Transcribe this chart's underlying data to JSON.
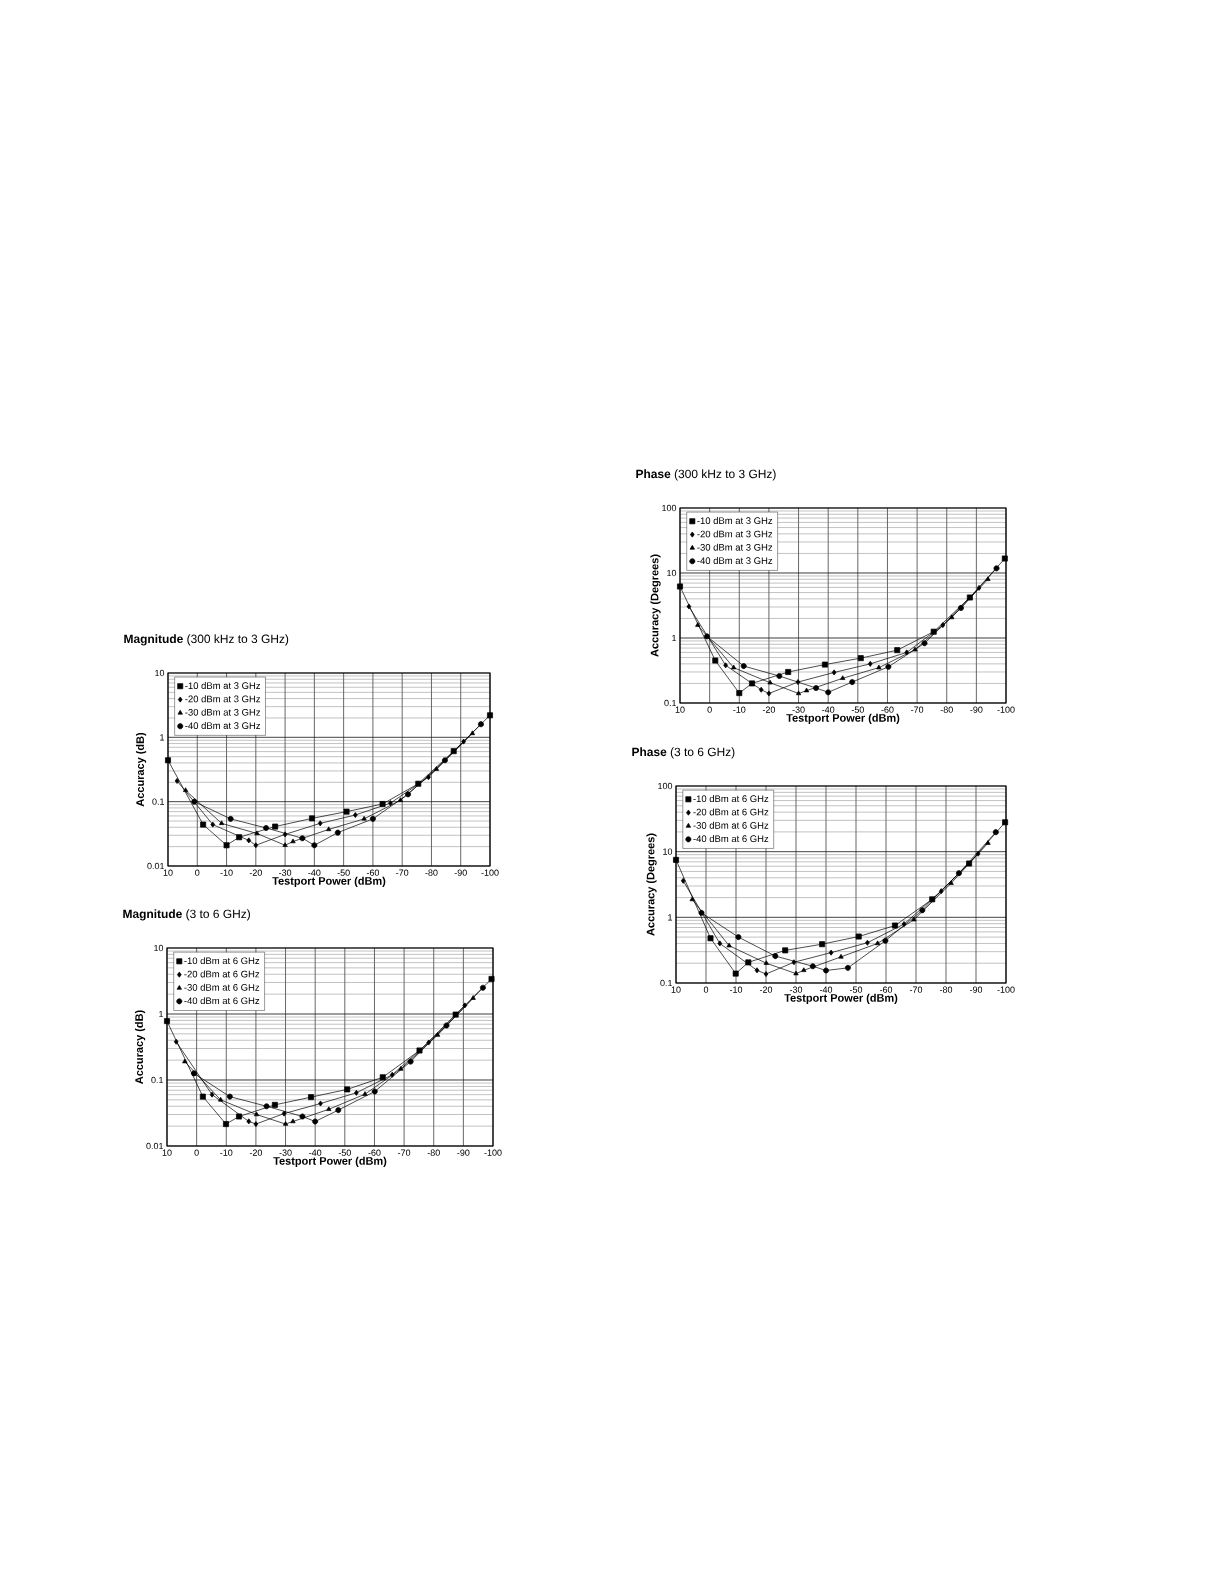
{
  "chart_data": [
    {
      "type": "line",
      "title": "**Magnitude**   (300 kHz to 3 GHz)",
      "xlabel": "Testport Power (dBm)",
      "ylabel": "Accuracy (dB)",
      "log": "y",
      "grid": true,
      "legend": "top left",
      "xlim": [
        10,
        -100
      ],
      "xticks": [
        10,
        0,
        -10,
        -20,
        -30,
        -40,
        -50,
        -60,
        -70,
        -80,
        -90,
        -100
      ],
      "ylim": [
        0.01,
        10
      ],
      "yticks": [
        0.01,
        0.1,
        1,
        10
      ],
      "series": [
        {
          "name": "-10 dBm at 3 GHz",
          "color": "#000000",
          "marker": "square",
          "x": [
            10,
            -2,
            -10,
            -14.3,
            -26.6,
            -39.2,
            -51,
            -63.3,
            -75.5,
            -87.6,
            -100
          ],
          "values": [
            0.44,
            0.044,
            0.021,
            0.028,
            0.041,
            0.055,
            0.07,
            0.092,
            0.19,
            0.61,
            2.2
          ]
        },
        {
          "name": "-20 dBm at 3 GHz",
          "color": "#000000",
          "marker": "diamond",
          "x": [
            6.9,
            -5.3,
            -17.6,
            -20,
            -30,
            -42,
            -54,
            -66,
            -79,
            -91
          ],
          "values": [
            0.21,
            0.044,
            0.025,
            0.021,
            0.031,
            0.046,
            0.062,
            0.095,
            0.24,
            0.86
          ]
        },
        {
          "name": "-30 dBm at 3 GHz",
          "color": "#000000",
          "marker": "triangle",
          "x": [
            4,
            -8.3,
            -20.4,
            -30,
            -32.7,
            -44.9,
            -57,
            -69.4,
            -81.7,
            -94
          ],
          "values": [
            0.15,
            0.046,
            0.032,
            0.021,
            0.024,
            0.037,
            0.054,
            0.105,
            0.32,
            1.15
          ]
        },
        {
          "name": "-40 dBm at 3 GHz",
          "color": "#000000",
          "marker": "circle",
          "x": [
            1,
            -11.4,
            -23.5,
            -35.9,
            -40,
            -48,
            -60,
            -72,
            -84.6,
            -96.9
          ],
          "values": [
            0.1,
            0.054,
            0.039,
            0.027,
            0.021,
            0.033,
            0.054,
            0.13,
            0.44,
            1.6
          ]
        }
      ]
    },
    {
      "type": "line",
      "title": "**Magnitude**   (3 to 6 GHz)",
      "xlabel": "Testport Power (dBm)",
      "ylabel": "Accuracy (dB)",
      "log": "y",
      "grid": true,
      "legend": "top left",
      "xlim": [
        10,
        -100
      ],
      "xticks": [
        10,
        0,
        -10,
        -20,
        -30,
        -40,
        -50,
        -60,
        -70,
        -80,
        -90,
        -100
      ],
      "ylim": [
        0.01,
        10
      ],
      "yticks": [
        0.01,
        0.1,
        1,
        10
      ],
      "series": [
        {
          "name": "-10 dBm at 6 GHz",
          "color": "#000000",
          "marker": "square",
          "x": [
            10,
            -2.1,
            -9.9,
            -14.3,
            -26.4,
            -38.6,
            -50.8,
            -62.8,
            -75.2,
            -87.4,
            -99.5
          ],
          "values": [
            0.78,
            0.056,
            0.0215,
            0.028,
            0.042,
            0.055,
            0.072,
            0.11,
            0.28,
            0.98,
            3.4
          ]
        },
        {
          "name": "-20 dBm at 6 GHz",
          "color": "#000000",
          "marker": "diamond",
          "x": [
            6.9,
            -5.2,
            -17.6,
            -20,
            -29.5,
            -41.8,
            -53.9,
            -66,
            -78.3,
            -90.5
          ],
          "values": [
            0.38,
            0.06,
            0.0236,
            0.0215,
            0.031,
            0.044,
            0.064,
            0.12,
            0.37,
            1.35
          ]
        },
        {
          "name": "-30 dBm at 6 GHz",
          "color": "#000000",
          "marker": "triangle",
          "x": [
            4,
            -8.1,
            -20.2,
            -30,
            -32.5,
            -44.6,
            -56.8,
            -68.9,
            -81.3,
            -93.3
          ],
          "values": [
            0.19,
            0.05,
            0.03,
            0.0215,
            0.0235,
            0.036,
            0.061,
            0.147,
            0.48,
            1.74
          ]
        },
        {
          "name": "-40 dBm at 6 GHz",
          "color": "#000000",
          "marker": "circle",
          "x": [
            0.9,
            -11.2,
            -23.6,
            -35.7,
            -40,
            -47.8,
            -60.1,
            -72.2,
            -84.3,
            -96.6
          ],
          "values": [
            0.126,
            0.056,
            0.04,
            0.028,
            0.0235,
            0.035,
            0.067,
            0.19,
            0.67,
            2.5
          ]
        }
      ]
    },
    {
      "type": "line",
      "title": "**Phase**  (300 kHz to 3 GHz)",
      "xlabel": "Testport Power (dBm)",
      "ylabel": "Accuracy (Degrees)",
      "log": "y",
      "grid": true,
      "legend": "top left",
      "xlim": [
        10,
        -100
      ],
      "xticks": [
        10,
        0,
        -10,
        -20,
        -30,
        -40,
        -50,
        -60,
        -70,
        -80,
        -90,
        -100
      ],
      "ylim": [
        0.1,
        100
      ],
      "yticks": [
        0.1,
        1,
        10,
        100
      ],
      "series": [
        {
          "name": "-10 dBm at 3 GHz",
          "color": "#000000",
          "marker": "square",
          "x": [
            10,
            -1.9,
            -10,
            -14.3,
            -26.5,
            -38.9,
            -51,
            -63.3,
            -75.6,
            -87.8,
            -99.6
          ],
          "values": [
            6.2,
            0.45,
            0.142,
            0.2,
            0.3,
            0.39,
            0.49,
            0.65,
            1.25,
            4.2,
            16.7
          ]
        },
        {
          "name": "-20 dBm at 3 GHz",
          "color": "#000000",
          "marker": "diamond",
          "x": [
            7,
            -5.4,
            -17.4,
            -20,
            -29.8,
            -42,
            -54.2,
            -66.5,
            -78.7,
            -90.9
          ],
          "values": [
            3.05,
            0.38,
            0.16,
            0.14,
            0.21,
            0.295,
            0.4,
            0.6,
            1.58,
            5.9
          ]
        },
        {
          "name": "-30 dBm at 3 GHz",
          "color": "#000000",
          "marker": "triangle",
          "x": [
            4,
            -8.1,
            -20.4,
            -30,
            -32.7,
            -44.9,
            -57.1,
            -69.3,
            -81.7,
            -93.9
          ],
          "values": [
            1.58,
            0.35,
            0.205,
            0.14,
            0.155,
            0.24,
            0.35,
            0.66,
            2.07,
            8
          ]
        },
        {
          "name": "-40 dBm at 3 GHz",
          "color": "#000000",
          "marker": "circle",
          "x": [
            0.9,
            -11.5,
            -23.5,
            -35.9,
            -40,
            -48.1,
            -60.3,
            -72.5,
            -84.8,
            -96.8
          ],
          "values": [
            1.06,
            0.37,
            0.26,
            0.17,
            0.146,
            0.21,
            0.36,
            0.83,
            2.9,
            11.8
          ]
        }
      ]
    },
    {
      "type": "line",
      "title": "**Phase**  (3 to 6 GHz)",
      "xlabel": "Testport Power (dBm)",
      "ylabel": "Accuracy (Degrees)",
      "log": "y",
      "grid": true,
      "legend": "top left",
      "xlim": [
        10,
        -100
      ],
      "xticks": [
        10,
        0,
        -10,
        -20,
        -30,
        -40,
        -50,
        -60,
        -70,
        -80,
        -90,
        -100
      ],
      "ylim": [
        0.1,
        100
      ],
      "yticks": [
        0.1,
        1,
        10,
        100
      ],
      "series": [
        {
          "name": "-10 dBm at 6 GHz",
          "color": "#000000",
          "marker": "square",
          "x": [
            10,
            -1.5,
            -9.9,
            -14.1,
            -26.4,
            -38.7,
            -50.9,
            -63,
            -75.4,
            -87.7,
            -99.7
          ],
          "values": [
            7.5,
            0.48,
            0.139,
            0.206,
            0.314,
            0.39,
            0.51,
            0.75,
            1.88,
            6.6,
            28
          ]
        },
        {
          "name": "-20 dBm at 6 GHz",
          "color": "#000000",
          "marker": "diamond",
          "x": [
            7.6,
            -4.6,
            -17,
            -20,
            -29.3,
            -41.7,
            -53.8,
            -66,
            -78.4,
            -90.7
          ],
          "values": [
            3.6,
            0.4,
            0.156,
            0.137,
            0.207,
            0.29,
            0.41,
            0.79,
            2.5,
            9.3
          ]
        },
        {
          "name": "-30 dBm at 6 GHz",
          "color": "#000000",
          "marker": "triangle",
          "x": [
            4.6,
            -7.7,
            -20.1,
            -30,
            -32.6,
            -45,
            -57.2,
            -69.3,
            -81.7,
            -94
          ],
          "values": [
            1.87,
            0.37,
            0.2,
            0.139,
            0.156,
            0.25,
            0.4,
            0.92,
            3.3,
            13.5
          ]
        },
        {
          "name": "-40 dBm at 6 GHz",
          "color": "#000000",
          "marker": "circle",
          "x": [
            1.5,
            -10.8,
            -23.1,
            -35.6,
            -40,
            -47.3,
            -59.8,
            -72.1,
            -84.3,
            -96.6
          ],
          "values": [
            1.17,
            0.5,
            0.257,
            0.18,
            0.155,
            0.17,
            0.44,
            1.28,
            4.7,
            19.8
          ]
        }
      ]
    }
  ]
}
